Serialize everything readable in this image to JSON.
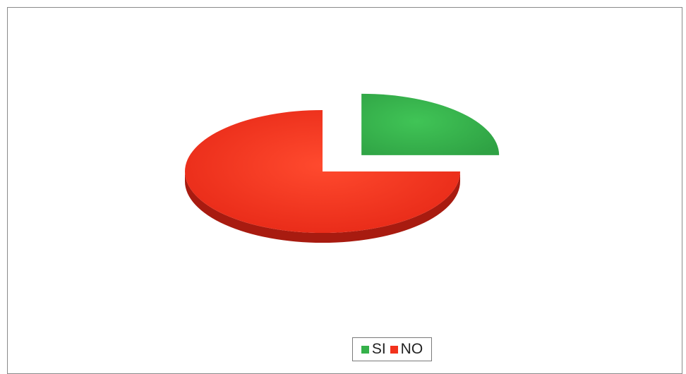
{
  "chart_data": {
    "type": "pie",
    "style": "3d-exploded",
    "slices": [
      {
        "label": "SI",
        "value": 25,
        "color": "#35b14a",
        "side_color": "#175c23"
      },
      {
        "label": "NO",
        "value": 75,
        "color": "#f2321c",
        "side_color": "#a81b10"
      }
    ],
    "exploded": [
      "SI"
    ],
    "legend": {
      "position": "bottom",
      "entries": [
        "SI",
        "NO"
      ]
    },
    "title": ""
  }
}
